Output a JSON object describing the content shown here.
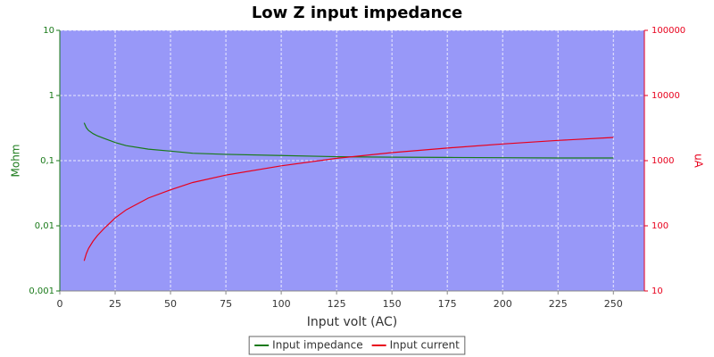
{
  "chart_data": {
    "type": "line",
    "title": "Low Z input impedance",
    "xlabel": "Input volt (AC)",
    "ylabel": "Mohm",
    "y2label": "uA",
    "x": [
      11,
      12,
      13,
      15,
      17,
      20,
      25,
      30,
      40,
      50,
      60,
      75,
      100,
      125,
      150,
      175,
      200,
      225,
      250
    ],
    "series": [
      {
        "name": "Input impedance",
        "color": "#1a7a1a",
        "values": [
          0.38,
          0.32,
          0.29,
          0.26,
          0.24,
          0.22,
          0.19,
          0.17,
          0.15,
          0.14,
          0.13,
          0.125,
          0.12,
          0.115,
          0.113,
          0.112,
          0.111,
          0.11,
          0.11
        ]
      },
      {
        "name": "Input current",
        "color": "#e8001c",
        "axis": "y2",
        "values": [
          29,
          37.5,
          45,
          58,
          71,
          91,
          132,
          176,
          267,
          357,
          462,
          600,
          833,
          1087,
          1327,
          1563,
          1802,
          2045,
          2273
        ]
      }
    ],
    "xlim": [
      0,
      264
    ],
    "xticks": [
      0,
      25,
      50,
      75,
      100,
      125,
      150,
      175,
      200,
      225,
      250
    ],
    "ylim": [
      0.001,
      10
    ],
    "yticks": [
      {
        "value": 0.001,
        "label": "0,001"
      },
      {
        "value": 0.01,
        "label": "0,01"
      },
      {
        "value": 0.1,
        "label": "0,1"
      },
      1,
      10
    ],
    "y2lim": [
      10,
      100000
    ],
    "y2ticks": [
      10,
      100,
      1000,
      10000,
      100000
    ],
    "log_y": true,
    "log_y2": true,
    "grid": true,
    "legend": "bottom"
  }
}
